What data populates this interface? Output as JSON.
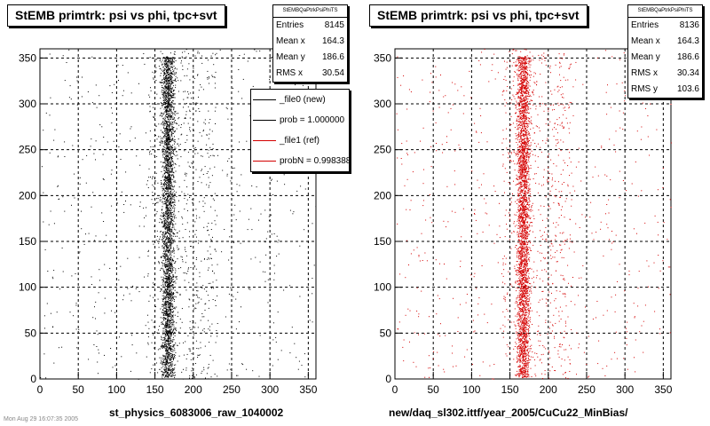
{
  "chart_data": [
    {
      "type": "scatter",
      "title": "StEMB primtrk: psi vs phi, tpc+svt",
      "xlabel": "st_physics_6083006_raw_1040002",
      "ylabel": "",
      "xlim": [
        0,
        360
      ],
      "ylim": [
        0,
        360
      ],
      "x_ticks": [
        "0",
        "50",
        "100",
        "150",
        "200",
        "250",
        "300",
        "350"
      ],
      "y_ticks": [
        "0",
        "50",
        "100",
        "150",
        "200",
        "250",
        "300",
        "350"
      ],
      "grid": true,
      "marker_color": "#000000",
      "stats": {
        "name": "StEMBQaPtrkPsiPhiTS",
        "rows": [
          {
            "label": "Entries",
            "value": "8145"
          },
          {
            "label": "Mean x",
            "value": "164.3"
          },
          {
            "label": "Mean y",
            "value": "186.6"
          },
          {
            "label": "RMS x",
            "value": "30.54"
          }
        ]
      },
      "legend": {
        "placement": "right",
        "entries": [
          {
            "label": "_file0 (new)",
            "color": "#000000"
          },
          {
            "label": "prob = 1.000000",
            "color": "#000000"
          },
          {
            "label": "_file1 (ref)",
            "color": "#d40000"
          },
          {
            "label": "probN = 0.998388",
            "color": "#d40000"
          }
        ]
      },
      "point_clouds": [
        {
          "x_center": 167,
          "x_spread": 6,
          "y_range": [
            0,
            360
          ],
          "density": "high"
        },
        {
          "x_range": [
            0,
            360
          ],
          "y_range": [
            0,
            360
          ],
          "density": "low"
        }
      ]
    },
    {
      "type": "scatter",
      "title": "StEMB primtrk: psi vs phi, tpc+svt",
      "xlabel": "new/daq_sl302.ittf/year_2005/CuCu22_MinBias/",
      "ylabel": "",
      "xlim": [
        0,
        360
      ],
      "ylim": [
        0,
        360
      ],
      "x_ticks": [
        "0",
        "50",
        "100",
        "150",
        "200",
        "250",
        "300",
        "350"
      ],
      "y_ticks": [
        "0",
        "50",
        "100",
        "150",
        "200",
        "250",
        "300",
        "350"
      ],
      "grid": true,
      "marker_color": "#d40000",
      "stats": {
        "name": "StEMBQaPtrkPsiPhiTS",
        "rows": [
          {
            "label": "Entries",
            "value": "8136"
          },
          {
            "label": "Mean x",
            "value": "164.3"
          },
          {
            "label": "Mean y",
            "value": "186.6"
          },
          {
            "label": "RMS x",
            "value": "30.34"
          },
          {
            "label": "RMS y",
            "value": "103.6"
          }
        ]
      },
      "point_clouds": [
        {
          "x_center": 167,
          "x_spread": 6,
          "y_range": [
            0,
            360
          ],
          "density": "high"
        },
        {
          "x_range": [
            0,
            360
          ],
          "y_range": [
            0,
            360
          ],
          "density": "low"
        }
      ]
    }
  ],
  "footer_stamp": "Mon Aug 29 16:07:35 2005"
}
